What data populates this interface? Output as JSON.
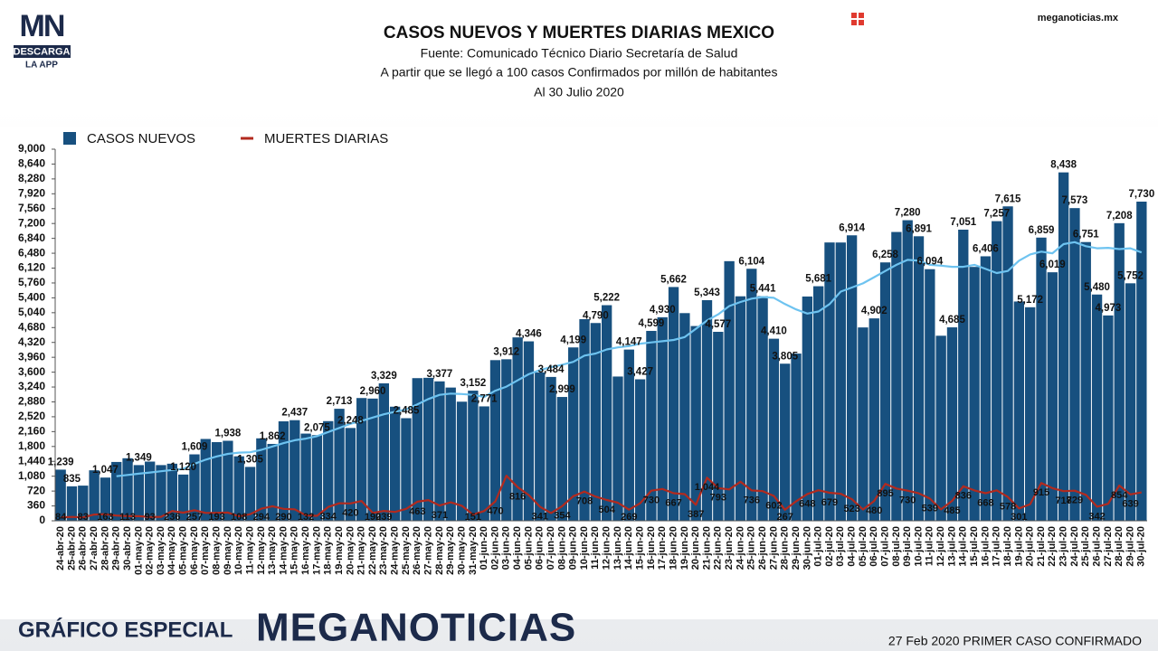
{
  "header": {
    "logo": "MN",
    "logo_badge": "DESCARGA",
    "logo_sub": "LA APP",
    "site": "meganoticias.mx"
  },
  "chart_data": {
    "type": "bar",
    "title": "CASOS NUEVOS Y MUERTES DIARIAS MEXICO",
    "subtitles": [
      "Fuente: Comunicado Técnico Diario Secretaría de Salud",
      "A partir que se llegó a 100 casos Confirmados por millón de habitantes",
      "Al 30 Julio 2020"
    ],
    "categories": [
      "24-abr-20",
      "25-abr-20",
      "26-abr-20",
      "27-abr-20",
      "28-abr-20",
      "29-abr-20",
      "30-abr-20",
      "01-may-20",
      "02-may-20",
      "03-may-20",
      "04-may-20",
      "05-may-20",
      "06-may-20",
      "07-may-20",
      "08-may-20",
      "09-may-20",
      "10-may-20",
      "11-may-20",
      "12-may-20",
      "13-may-20",
      "14-may-20",
      "15-may-20",
      "16-may-20",
      "17-may-20",
      "18-may-20",
      "19-may-20",
      "20-may-20",
      "21-may-20",
      "22-may-20",
      "23-may-20",
      "24-may-20",
      "25-may-20",
      "26-may-20",
      "27-may-20",
      "28-may-20",
      "29-may-20",
      "30-may-20",
      "31-may-20",
      "01-jun-20",
      "02-jun-20",
      "03-jun-20",
      "04-jun-20",
      "05-jun-20",
      "06-jun-20",
      "07-jun-20",
      "08-jun-20",
      "09-jun-20",
      "10-jun-20",
      "11-jun-20",
      "12-jun-20",
      "13-jun-20",
      "14-jun-20",
      "15-jun-20",
      "16-jun-20",
      "17-jun-20",
      "18-jun-20",
      "19-jun-20",
      "20-jun-20",
      "21-jun-20",
      "22-jun-20",
      "23-jun-20",
      "24-jun-20",
      "25-jun-20",
      "26-jun-20",
      "27-jun-20",
      "28-jun-20",
      "29-jun-20",
      "30-jun-20",
      "01-jul-20",
      "02-jul-20",
      "03-jul-20",
      "04-jul-20",
      "05-jul-20",
      "06-jul-20",
      "07-jul-20",
      "08-jul-20",
      "09-jul-20",
      "10-jul-20",
      "11-jul-20",
      "12-jul-20",
      "13-jul-20",
      "14-jul-20",
      "15-jul-20",
      "16-jul-20",
      "17-jul-20",
      "18-jul-20",
      "19-jul-20",
      "20-jul-20",
      "21-jul-20",
      "22-jul-20",
      "23-jul-20",
      "24-jul-20",
      "25-jul-20",
      "26-jul-20",
      "27-jul-20",
      "28-jul-20",
      "29-jul-20",
      "30-jul-20"
    ],
    "series": [
      {
        "name": "CASOS NUEVOS",
        "type": "bar",
        "color": "#17507f",
        "values": [
          1239,
          835,
          852,
          1223,
          1047,
          1425,
          1515,
          1349,
          1434,
          1349,
          1383,
          1120,
          1609,
          1982,
          1906,
          1938,
          1562,
          1305,
          1997,
          1862,
          2409,
          2437,
          2112,
          2075,
          2414,
          2713,
          2248,
          2973,
          2960,
          3329,
          2764,
          2485,
          3455,
          3463,
          3377,
          3227,
          2885,
          3152,
          2771,
          3891,
          3912,
          4442,
          4346,
          3593,
          3484,
          2999,
          4199,
          4883,
          4790,
          5222,
          3494,
          4147,
          3427,
          4599,
          4930,
          5662,
          5030,
          4717,
          5343,
          4577,
          6288,
          5437,
          6104,
          5441,
          4410,
          3805,
          4050,
          5432,
          5681,
          6741,
          6740,
          6914,
          4683,
          4902,
          6258,
          6995,
          7280,
          6891,
          6094,
          4482,
          4685,
          7051,
          6149,
          6406,
          7257,
          7615,
          5311,
          5172,
          6859,
          6019,
          8438,
          7573,
          6751,
          5480,
          4973,
          7208,
          5752,
          7730
        ],
        "value_labels": [
          "1,239",
          "835",
          null,
          null,
          "1,047",
          null,
          null,
          "1,349",
          null,
          null,
          null,
          "1,120",
          "1,609",
          null,
          null,
          "1,938",
          null,
          "1,305",
          null,
          "1,862",
          null,
          "2,437",
          null,
          "2,075",
          null,
          "2,713",
          "2,248",
          null,
          "2,960",
          "3,329",
          null,
          "2,485",
          null,
          null,
          "3,377",
          null,
          null,
          "3,152",
          "2,771",
          null,
          "3,912",
          null,
          "4,346",
          null,
          "3,484",
          "2,999",
          "4,199",
          null,
          "4,790",
          "5,222",
          null,
          "4,147",
          "3,427",
          "4,599",
          "4,930",
          "5,662",
          null,
          null,
          "5,343",
          "4,577",
          null,
          null,
          "6,104",
          "5,441",
          "4,410",
          "3,805",
          null,
          null,
          "5,681",
          null,
          null,
          "6,914",
          null,
          "4,902",
          "6,258",
          null,
          "7,280",
          "6,891",
          "6,094",
          null,
          "4,685",
          "7,051",
          null,
          "6,406",
          "7,257",
          "7,615",
          null,
          "5,172",
          "6,859",
          "6,019",
          "8,438",
          "7,573",
          "6,751",
          "5,480",
          "4,973",
          "7,208",
          "5,752",
          "7,730"
        ]
      },
      {
        "name": "MUERTES DIARIAS",
        "type": "line",
        "color": "#b22a1e",
        "values": [
          84,
          94,
          83,
          152,
          163,
          127,
          113,
          111,
          93,
          97,
          236,
          197,
          257,
          190,
          193,
          199,
          108,
          160,
          294,
          353,
          290,
          278,
          132,
          121,
          334,
          424,
          420,
          479,
          190,
          239,
          215,
          289,
          463,
          501,
          371,
          447,
          364,
          151,
          237,
          470,
          1092,
          816,
          625,
          341,
          188,
          354,
          596,
          708,
          587,
          504,
          439,
          269,
          424,
          730,
          770,
          667,
          647,
          387,
          1044,
          793,
          759,
          947,
          736,
          719,
          602,
          267,
          473,
          648,
          741,
          679,
          654,
          523,
          273,
          480,
          895,
          782,
          730,
          665,
          539,
          276,
          485,
          836,
          736,
          668,
          737,
          578,
          301,
          402,
          915,
          790,
          718,
          729,
          629,
          342,
          411,
          854,
          639,
          688
        ],
        "value_labels": [
          "84",
          null,
          "83",
          null,
          "163",
          null,
          "113",
          null,
          "93",
          null,
          "236",
          null,
          "257",
          null,
          "193",
          null,
          "108",
          null,
          "294",
          null,
          "290",
          null,
          "132",
          null,
          "334",
          null,
          "420",
          null,
          "190",
          "239",
          null,
          null,
          "463",
          null,
          "371",
          null,
          null,
          "151",
          null,
          "470",
          null,
          "816",
          null,
          "341",
          null,
          "354",
          null,
          "708",
          null,
          "504",
          null,
          "269",
          null,
          "730",
          null,
          "667",
          null,
          "387",
          "1,044",
          "793",
          null,
          null,
          "736",
          null,
          "602",
          "267",
          null,
          "648",
          null,
          "679",
          null,
          "523",
          null,
          "480",
          "895",
          null,
          "730",
          null,
          "539",
          null,
          "485",
          "836",
          null,
          "668",
          null,
          "578",
          "301",
          null,
          "915",
          null,
          "718",
          "729",
          null,
          "342",
          null,
          "854",
          "639",
          null
        ]
      },
      {
        "type": "line",
        "color": "#6ec3f0",
        "values": [
          null,
          null,
          null,
          null,
          null,
          1080,
          1110,
          1140,
          1170,
          1200,
          1230,
          1260,
          1380,
          1480,
          1560,
          1620,
          1650,
          1660,
          1720,
          1800,
          1880,
          1950,
          1990,
          2050,
          2150,
          2250,
          2350,
          2420,
          2500,
          2580,
          2640,
          2700,
          2820,
          2950,
          3050,
          3080,
          3070,
          3050,
          3000,
          3150,
          3250,
          3400,
          3550,
          3650,
          3720,
          3780,
          3850,
          4000,
          4050,
          4150,
          4200,
          4230,
          4290,
          4320,
          4350,
          4380,
          4450,
          4650,
          4850,
          5000,
          5200,
          5300,
          5380,
          5420,
          5400,
          5250,
          5120,
          5020,
          5070,
          5250,
          5550,
          5650,
          5750,
          5900,
          6050,
          6200,
          6320,
          6300,
          6200,
          6180,
          6150,
          6150,
          6200,
          6100,
          6000,
          6050,
          6300,
          6450,
          6520,
          6480,
          6700,
          6750,
          6650,
          6600,
          6610,
          6580,
          6600,
          6500
        ]
      }
    ],
    "ylim": [
      0,
      9000
    ],
    "yticks": [
      0,
      360,
      720,
      {
        "value": 1080,
        "label": "1,080"
      },
      {
        "value": 1440,
        "label": "1,440"
      },
      {
        "value": 1800,
        "label": "1,800"
      },
      {
        "value": 2160,
        "label": "2,160"
      },
      {
        "value": 2520,
        "label": "2,520"
      },
      {
        "value": 2880,
        "label": "2,880"
      },
      {
        "value": 3240,
        "label": "3,240"
      },
      {
        "value": 3600,
        "label": "3,600"
      },
      {
        "value": 3960,
        "label": "3,960"
      },
      {
        "value": 4320,
        "label": "4,320"
      },
      {
        "value": 4680,
        "label": "4,680"
      },
      {
        "value": 5040,
        "label": "5,040"
      },
      {
        "value": 5400,
        "label": "5,400"
      },
      {
        "value": 5760,
        "label": "5,760"
      },
      {
        "value": 6120,
        "label": "6,120"
      },
      {
        "value": 6480,
        "label": "6,480"
      },
      {
        "value": 6840,
        "label": "6,840"
      },
      {
        "value": 7200,
        "label": "7,200"
      },
      {
        "value": 7560,
        "label": "7,560"
      },
      {
        "value": 7920,
        "label": "7,920"
      },
      {
        "value": 8280,
        "label": "8,280"
      },
      {
        "value": 8640,
        "label": "8,640"
      },
      {
        "value": 9000,
        "label": "9,000"
      }
    ],
    "legend": "top-left"
  },
  "footer": {
    "label": "GRÁFICO ESPECIAL",
    "brand": "MEGANOTICIAS",
    "note": "27 Feb 2020 PRIMER CASO CONFIRMADO"
  }
}
